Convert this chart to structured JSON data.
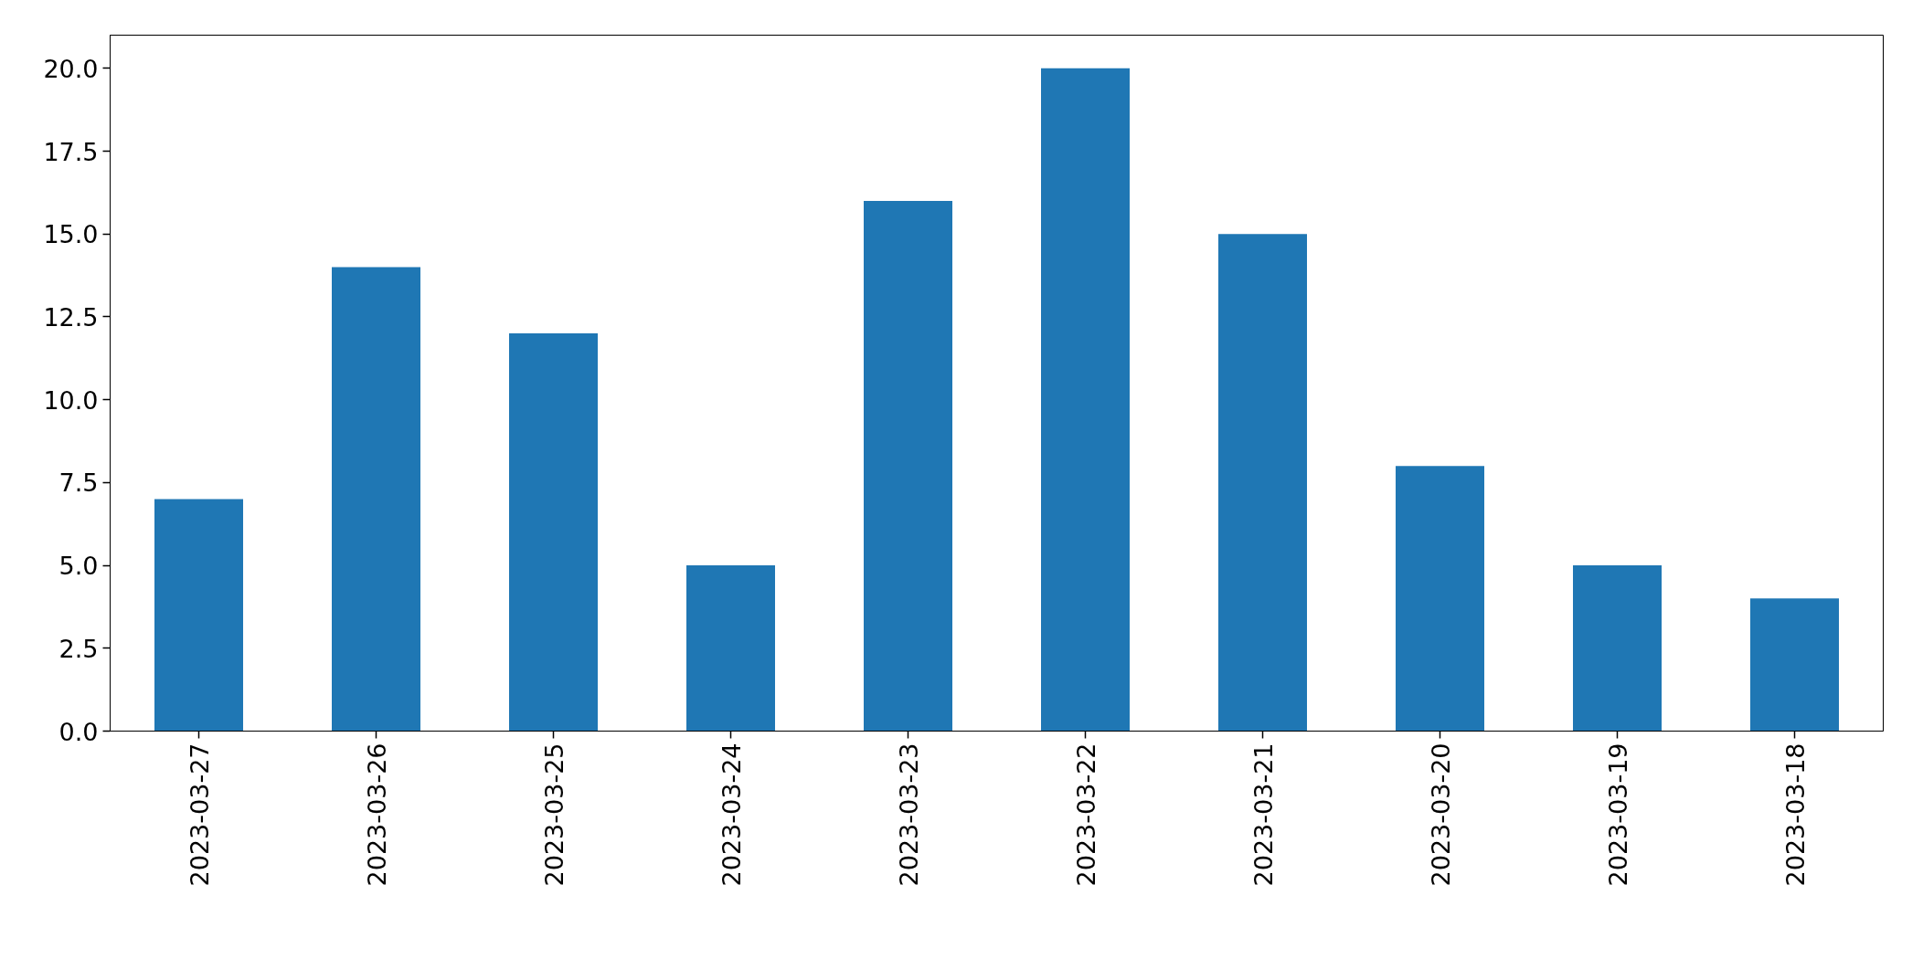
{
  "chart_data": {
    "type": "bar",
    "categories": [
      "2023-03-27",
      "2023-03-26",
      "2023-03-25",
      "2023-03-24",
      "2023-03-23",
      "2023-03-22",
      "2023-03-21",
      "2023-03-20",
      "2023-03-19",
      "2023-03-18"
    ],
    "values": [
      7,
      14,
      12,
      5,
      16,
      20,
      15,
      8,
      5,
      4
    ],
    "color": "#1f77b4",
    "ylim": [
      0,
      21
    ],
    "yticks": [
      {
        "value": 0,
        "label": "0.0"
      },
      {
        "value": 2.5,
        "label": "2.5"
      },
      {
        "value": 5,
        "label": "5.0"
      },
      {
        "value": 7.5,
        "label": "7.5"
      },
      {
        "value": 10,
        "label": "10.0"
      },
      {
        "value": 12.5,
        "label": "12.5"
      },
      {
        "value": 15,
        "label": "15.0"
      },
      {
        "value": 17.5,
        "label": "17.5"
      },
      {
        "value": 20,
        "label": "20.0"
      }
    ],
    "grid": false
  }
}
